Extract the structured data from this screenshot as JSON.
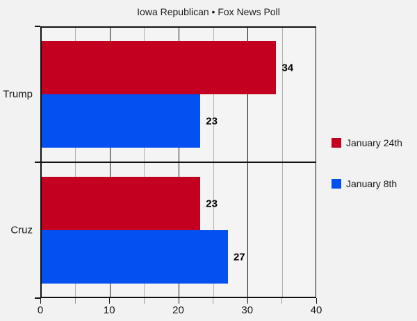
{
  "chart_data": {
    "type": "bar",
    "orientation": "horizontal",
    "title": "Iowa Republican • Fox News Poll",
    "categories": [
      "Trump",
      "Cruz"
    ],
    "series": [
      {
        "name": "January 24th",
        "color": "#c40020",
        "values": [
          34,
          23
        ]
      },
      {
        "name": "January 8th",
        "color": "#0450f0",
        "values": [
          23,
          27
        ]
      }
    ],
    "xlim": [
      0,
      40
    ],
    "xticks": [
      0,
      10,
      20,
      30,
      40
    ],
    "minor_xticks": [
      5,
      15,
      25,
      35
    ],
    "data_labels": [
      34,
      23,
      23,
      27
    ],
    "grid": "vertical-major-dark-minor-light",
    "legend_position": "right-middle"
  },
  "colors": {
    "background": "#f2f2f2",
    "plot_background": "#f4f4f4",
    "major_grid": "#161616",
    "minor_grid": "#b0b0b0",
    "axis": "#111111",
    "text": "#1a1a1a",
    "series_red": "#c40020",
    "series_blue": "#0450f0"
  }
}
